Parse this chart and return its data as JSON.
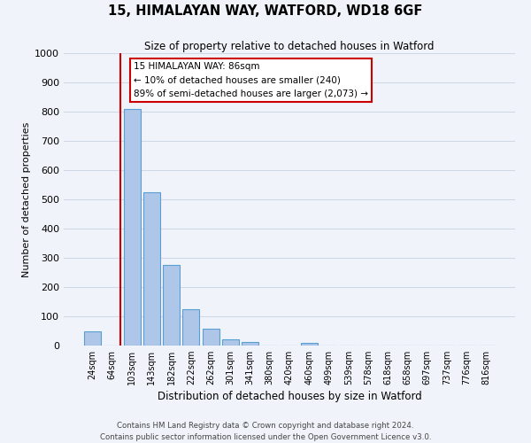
{
  "title": "15, HIMALAYAN WAY, WATFORD, WD18 6GF",
  "subtitle": "Size of property relative to detached houses in Watford",
  "xlabel": "Distribution of detached houses by size in Watford",
  "ylabel": "Number of detached properties",
  "bar_labels": [
    "24sqm",
    "64sqm",
    "103sqm",
    "143sqm",
    "182sqm",
    "222sqm",
    "262sqm",
    "301sqm",
    "341sqm",
    "380sqm",
    "420sqm",
    "460sqm",
    "499sqm",
    "539sqm",
    "578sqm",
    "618sqm",
    "658sqm",
    "697sqm",
    "737sqm",
    "776sqm",
    "816sqm"
  ],
  "bar_values": [
    47,
    0,
    810,
    525,
    275,
    125,
    58,
    22,
    12,
    0,
    0,
    8,
    0,
    0,
    0,
    0,
    0,
    0,
    0,
    0,
    0
  ],
  "bar_color": "#aec6e8",
  "bar_edge_color": "#5a9fd4",
  "ylim": [
    0,
    1000
  ],
  "yticks": [
    0,
    100,
    200,
    300,
    400,
    500,
    600,
    700,
    800,
    900,
    1000
  ],
  "property_label": "15 HIMALAYAN WAY: 86sqm",
  "annotation_line1": "← 10% of detached houses are smaller (240)",
  "annotation_line2": "89% of semi-detached houses are larger (2,073) →",
  "annotation_box_color": "#ffffff",
  "annotation_box_edge_color": "#cc0000",
  "property_line_color": "#cc0000",
  "grid_color": "#d0d8e8",
  "background_color": "#f0f4fa",
  "footer_line1": "Contains HM Land Registry data © Crown copyright and database right 2024.",
  "footer_line2": "Contains public sector information licensed under the Open Government Licence v3.0."
}
